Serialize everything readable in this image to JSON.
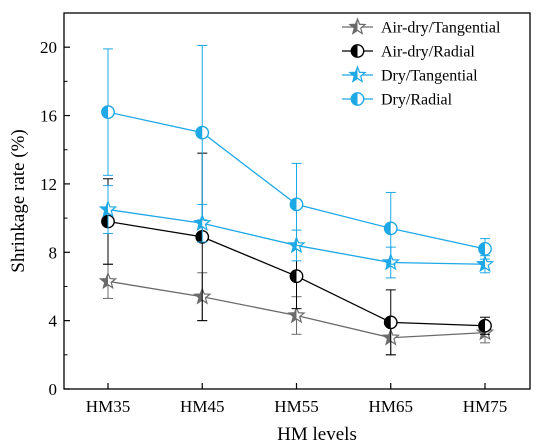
{
  "chart_data": {
    "type": "line",
    "title": "",
    "xlabel": "HM levels",
    "ylabel": "Shrinkage rate (%)",
    "categories": [
      "HM35",
      "HM45",
      "HM55",
      "HM65",
      "HM75"
    ],
    "ylim": [
      0,
      22
    ],
    "yticks": [
      0,
      4,
      8,
      12,
      16,
      20
    ],
    "grid": false,
    "legend_position": "top-right",
    "series": [
      {
        "name": "Air-dry/Tangential",
        "color": "#6b6b6b",
        "marker": "star-half",
        "values": [
          6.3,
          5.4,
          4.3,
          3.0,
          3.3
        ],
        "errors": [
          1.0,
          1.4,
          1.1,
          1.0,
          0.6
        ]
      },
      {
        "name": "Air-dry/Radial",
        "color": "#000000",
        "marker": "circle-half",
        "values": [
          9.8,
          8.9,
          6.6,
          3.9,
          3.7
        ],
        "errors": [
          2.5,
          4.9,
          1.9,
          1.9,
          0.5
        ]
      },
      {
        "name": "Dry/Tangential",
        "color": "#1fa8e6",
        "marker": "star-half",
        "values": [
          10.5,
          9.7,
          8.4,
          7.4,
          7.3
        ],
        "errors": [
          1.4,
          1.1,
          0.9,
          0.9,
          0.5
        ]
      },
      {
        "name": "Dry/Radial",
        "color": "#1fa8e6",
        "marker": "circle-half",
        "values": [
          16.2,
          15.0,
          10.8,
          9.4,
          8.2
        ],
        "errors": [
          3.7,
          5.1,
          2.4,
          2.1,
          0.6
        ]
      }
    ]
  }
}
